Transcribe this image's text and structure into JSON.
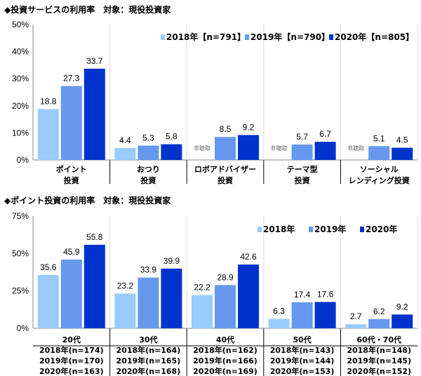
{
  "colors": {
    "2018": "#99ccff",
    "2019": "#6699ee",
    "2020": "#0033cc"
  },
  "chart_data": [
    {
      "type": "bar",
      "title": "◆投資サービスの利用率　対象：現役投資家",
      "ylim": [
        0,
        50
      ],
      "yticks": [
        "0%",
        "10%",
        "20%",
        "30%",
        "40%",
        "50%"
      ],
      "grid": false,
      "legend_position": "top-right",
      "categories": [
        [
          "ポイント",
          "投資"
        ],
        [
          "おつり",
          "投資"
        ],
        [
          "ロボアドバイザー",
          "投資"
        ],
        [
          "テーマ型",
          "投資"
        ],
        [
          "ソーシャル",
          "レンディング投資"
        ]
      ],
      "series": [
        {
          "name": "2018年【n=791】",
          "values": [
            18.8,
            4.4,
            null,
            null,
            null
          ],
          "labels": [
            "18.8",
            "4.4",
            "非聴取",
            "非聴取",
            "非聴取"
          ]
        },
        {
          "name": "2019年【n=790】",
          "values": [
            27.3,
            5.3,
            8.5,
            5.7,
            5.1
          ],
          "labels": [
            "27.3",
            "5.3",
            "8.5",
            "5.7",
            "5.1"
          ]
        },
        {
          "name": "2020年【n=805】",
          "values": [
            33.7,
            5.8,
            9.2,
            6.7,
            4.5
          ],
          "labels": [
            "33.7",
            "5.8",
            "9.2",
            "6.7",
            "4.5"
          ]
        }
      ]
    },
    {
      "type": "bar",
      "title": "◆ポイント投資の利用率　対象：現役投資家",
      "ylim": [
        0,
        75
      ],
      "yticks": [
        "0%",
        "25%",
        "50%",
        "75%"
      ],
      "grid": false,
      "legend_position": "top-right",
      "categories": [
        "20代",
        "30代",
        "40代",
        "50代",
        "60代・70代"
      ],
      "series": [
        {
          "name": "2018年",
          "values": [
            35.6,
            23.2,
            22.2,
            6.3,
            2.7
          ],
          "labels": [
            "35.6",
            "23.2",
            "22.2",
            "6.3",
            "2.7"
          ]
        },
        {
          "name": "2019年",
          "values": [
            45.9,
            33.9,
            28.9,
            17.4,
            6.2
          ],
          "labels": [
            "45.9",
            "33.9",
            "28.9",
            "17.4",
            "6.2"
          ]
        },
        {
          "name": "2020年",
          "values": [
            55.8,
            39.9,
            42.6,
            17.6,
            9.2
          ],
          "labels": [
            "55.8",
            "39.9",
            "42.6",
            "17.6",
            "9.2"
          ]
        }
      ],
      "sample_table": [
        [
          "2018年(n=174)",
          "2019年(n=170)",
          "2020年(n=163)"
        ],
        [
          "2018年(n=164)",
          "2019年(n=165)",
          "2020年(n=168)"
        ],
        [
          "2018年(n=162)",
          "2019年(n=166)",
          "2020年(n=169)"
        ],
        [
          "2018年(n=143)",
          "2019年(n=144)",
          "2020年(n=153)"
        ],
        [
          "2018年(n=148)",
          "2019年(n=145)",
          "2020年(n=152)"
        ]
      ]
    }
  ]
}
